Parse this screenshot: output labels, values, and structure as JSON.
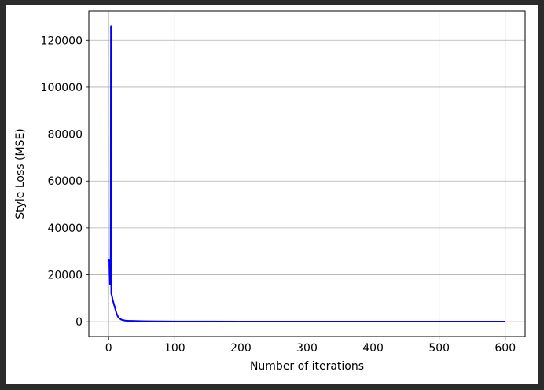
{
  "chart_data": {
    "type": "line",
    "title": "",
    "xlabel": "Number of iterations",
    "ylabel": "Style Loss (MSE)",
    "xlim": [
      -30,
      630
    ],
    "ylim": [
      -6300,
      132500
    ],
    "xticks": [
      0,
      100,
      200,
      300,
      400,
      500,
      600
    ],
    "xtick_labels": [
      "0",
      "100",
      "200",
      "300",
      "400",
      "500",
      "600"
    ],
    "yticks": [
      0,
      20000,
      40000,
      60000,
      80000,
      100000,
      120000
    ],
    "ytick_labels": [
      "0",
      "20000",
      "40000",
      "60000",
      "80000",
      "100000",
      "120000"
    ],
    "grid": true,
    "legend": "none",
    "series": [
      {
        "color": "#0000ff",
        "x": [
          0,
          1,
          2,
          2.5,
          3,
          3.5,
          4,
          5,
          6,
          8,
          10,
          12,
          14,
          16,
          18,
          20,
          25,
          30,
          40,
          50,
          60,
          80,
          100,
          150,
          200,
          300,
          400,
          500,
          600
        ],
        "y": [
          26500,
          26000,
          16000,
          16000,
          26000,
          126000,
          12000,
          11000,
          9500,
          7500,
          5500,
          3500,
          2200,
          1500,
          1100,
          800,
          500,
          400,
          300,
          250,
          200,
          150,
          120,
          100,
          90,
          80,
          70,
          60,
          55
        ]
      }
    ]
  }
}
